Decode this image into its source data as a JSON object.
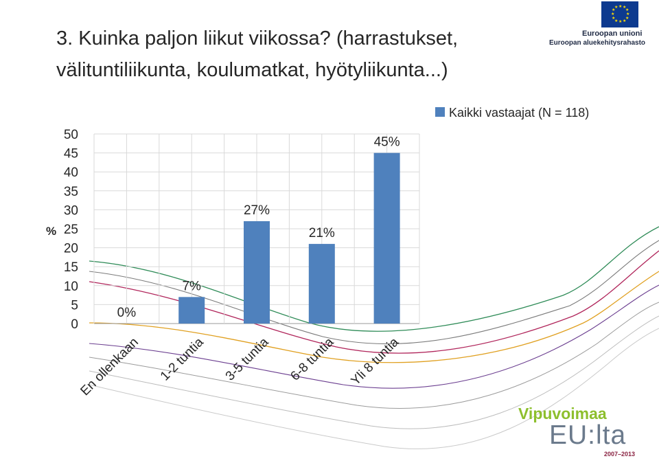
{
  "slide": {
    "title_line1": "3. Kuinka paljon liikut viikossa? (harrastukset,",
    "title_line2": "välituntiliikunta, koulumatkat, hyötyliikunta...)"
  },
  "logos": {
    "eu_union": "Euroopan unioni",
    "eu_fund": "Euroopan aluekehitysrahasto",
    "vipuvoimaa": "Vipuvoimaa",
    "eulta": "EU:lta",
    "years": "2007–2013"
  },
  "colors": {
    "bar": "#4f81bd",
    "eu_flag": "#0d3a8f",
    "eu_stars": "#ffdd00",
    "vipuvoimaa_green": "#8dbf2d"
  },
  "chart_data": {
    "type": "bar",
    "categories": [
      "En ollenkaan",
      "1-2 tuntia",
      "3-5 tuntia",
      "6-8 tuntia",
      "Yli 8 tuntia"
    ],
    "series": [
      {
        "name": "Kaikki vastaajat (N = 118)",
        "values": [
          0,
          7,
          27,
          21,
          45
        ]
      }
    ],
    "data_labels": [
      "0%",
      "7%",
      "27%",
      "21%",
      "45%"
    ],
    "ylabel": "%",
    "ylim": [
      0,
      50
    ],
    "yticks": [
      "0",
      "5",
      "10",
      "15",
      "20",
      "25",
      "30",
      "35",
      "40",
      "45",
      "50"
    ],
    "grid": true,
    "legend_position": "top-right"
  }
}
